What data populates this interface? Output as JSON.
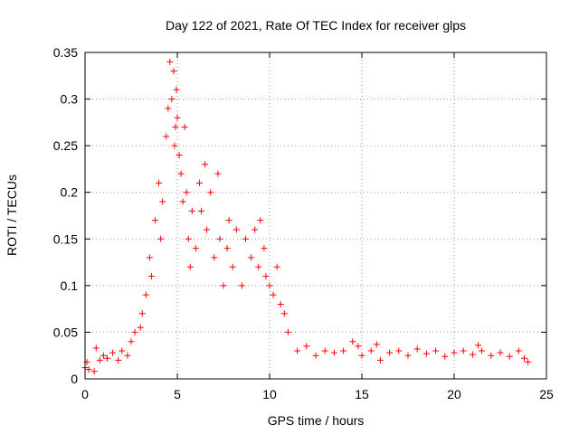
{
  "chart_data": {
    "type": "scatter",
    "title": "Day 122 of 2021, Rate Of TEC Index for receiver glps",
    "xlabel": "GPS time / hours",
    "ylabel": "ROTI / TECUs",
    "xlim": [
      0,
      25
    ],
    "ylim": [
      0,
      0.35
    ],
    "xticks": [
      0,
      5,
      10,
      15,
      20,
      25
    ],
    "yticks": [
      0,
      0.05,
      0.1,
      0.15,
      0.2,
      0.25,
      0.3,
      0.35
    ],
    "xtick_labels": [
      "0",
      "5",
      "10",
      "15",
      "20",
      "25"
    ],
    "ytick_labels": [
      "0",
      "0.05",
      "0.1",
      "0.15",
      "0.2",
      "0.25",
      "0.3",
      "0.35"
    ],
    "grid": true,
    "marker": "+",
    "color": "#ff0000",
    "series": [
      {
        "name": "ROTI",
        "x": [
          0.0,
          0.1,
          0.2,
          0.5,
          0.6,
          0.8,
          1.0,
          1.2,
          1.5,
          1.8,
          2.0,
          2.3,
          2.5,
          2.7,
          3.0,
          3.1,
          3.3,
          3.5,
          3.6,
          3.8,
          4.0,
          4.1,
          4.2,
          4.4,
          4.5,
          4.6,
          4.7,
          4.8,
          4.85,
          4.9,
          4.95,
          5.0,
          5.1,
          5.2,
          5.3,
          5.4,
          5.5,
          5.6,
          5.7,
          5.8,
          6.0,
          6.2,
          6.3,
          6.5,
          6.6,
          6.8,
          7.0,
          7.2,
          7.3,
          7.5,
          7.7,
          7.8,
          8.0,
          8.2,
          8.5,
          8.7,
          9.0,
          9.2,
          9.4,
          9.5,
          9.7,
          9.8,
          10.0,
          10.2,
          10.4,
          10.6,
          10.8,
          11.0,
          11.5,
          12.0,
          12.5,
          13.0,
          13.5,
          14.0,
          14.5,
          14.8,
          15.0,
          15.5,
          15.8,
          16.0,
          16.5,
          17.0,
          17.5,
          18.0,
          18.5,
          19.0,
          19.5,
          20.0,
          20.5,
          21.0,
          21.3,
          21.5,
          22.0,
          22.5,
          23.0,
          23.5,
          23.8,
          24.0
        ],
        "y": [
          0.012,
          0.018,
          0.01,
          0.008,
          0.033,
          0.02,
          0.025,
          0.022,
          0.028,
          0.02,
          0.03,
          0.025,
          0.04,
          0.05,
          0.055,
          0.07,
          0.09,
          0.13,
          0.11,
          0.17,
          0.21,
          0.15,
          0.19,
          0.26,
          0.29,
          0.34,
          0.3,
          0.33,
          0.25,
          0.27,
          0.31,
          0.28,
          0.24,
          0.22,
          0.19,
          0.27,
          0.2,
          0.15,
          0.12,
          0.18,
          0.14,
          0.21,
          0.18,
          0.23,
          0.16,
          0.2,
          0.13,
          0.22,
          0.15,
          0.1,
          0.14,
          0.17,
          0.12,
          0.16,
          0.1,
          0.15,
          0.13,
          0.16,
          0.12,
          0.17,
          0.14,
          0.11,
          0.1,
          0.09,
          0.12,
          0.08,
          0.07,
          0.05,
          0.03,
          0.035,
          0.025,
          0.03,
          0.028,
          0.03,
          0.04,
          0.035,
          0.025,
          0.03,
          0.037,
          0.02,
          0.028,
          0.03,
          0.025,
          0.032,
          0.027,
          0.03,
          0.024,
          0.028,
          0.03,
          0.026,
          0.036,
          0.03,
          0.025,
          0.028,
          0.024,
          0.03,
          0.022,
          0.018
        ]
      }
    ]
  }
}
